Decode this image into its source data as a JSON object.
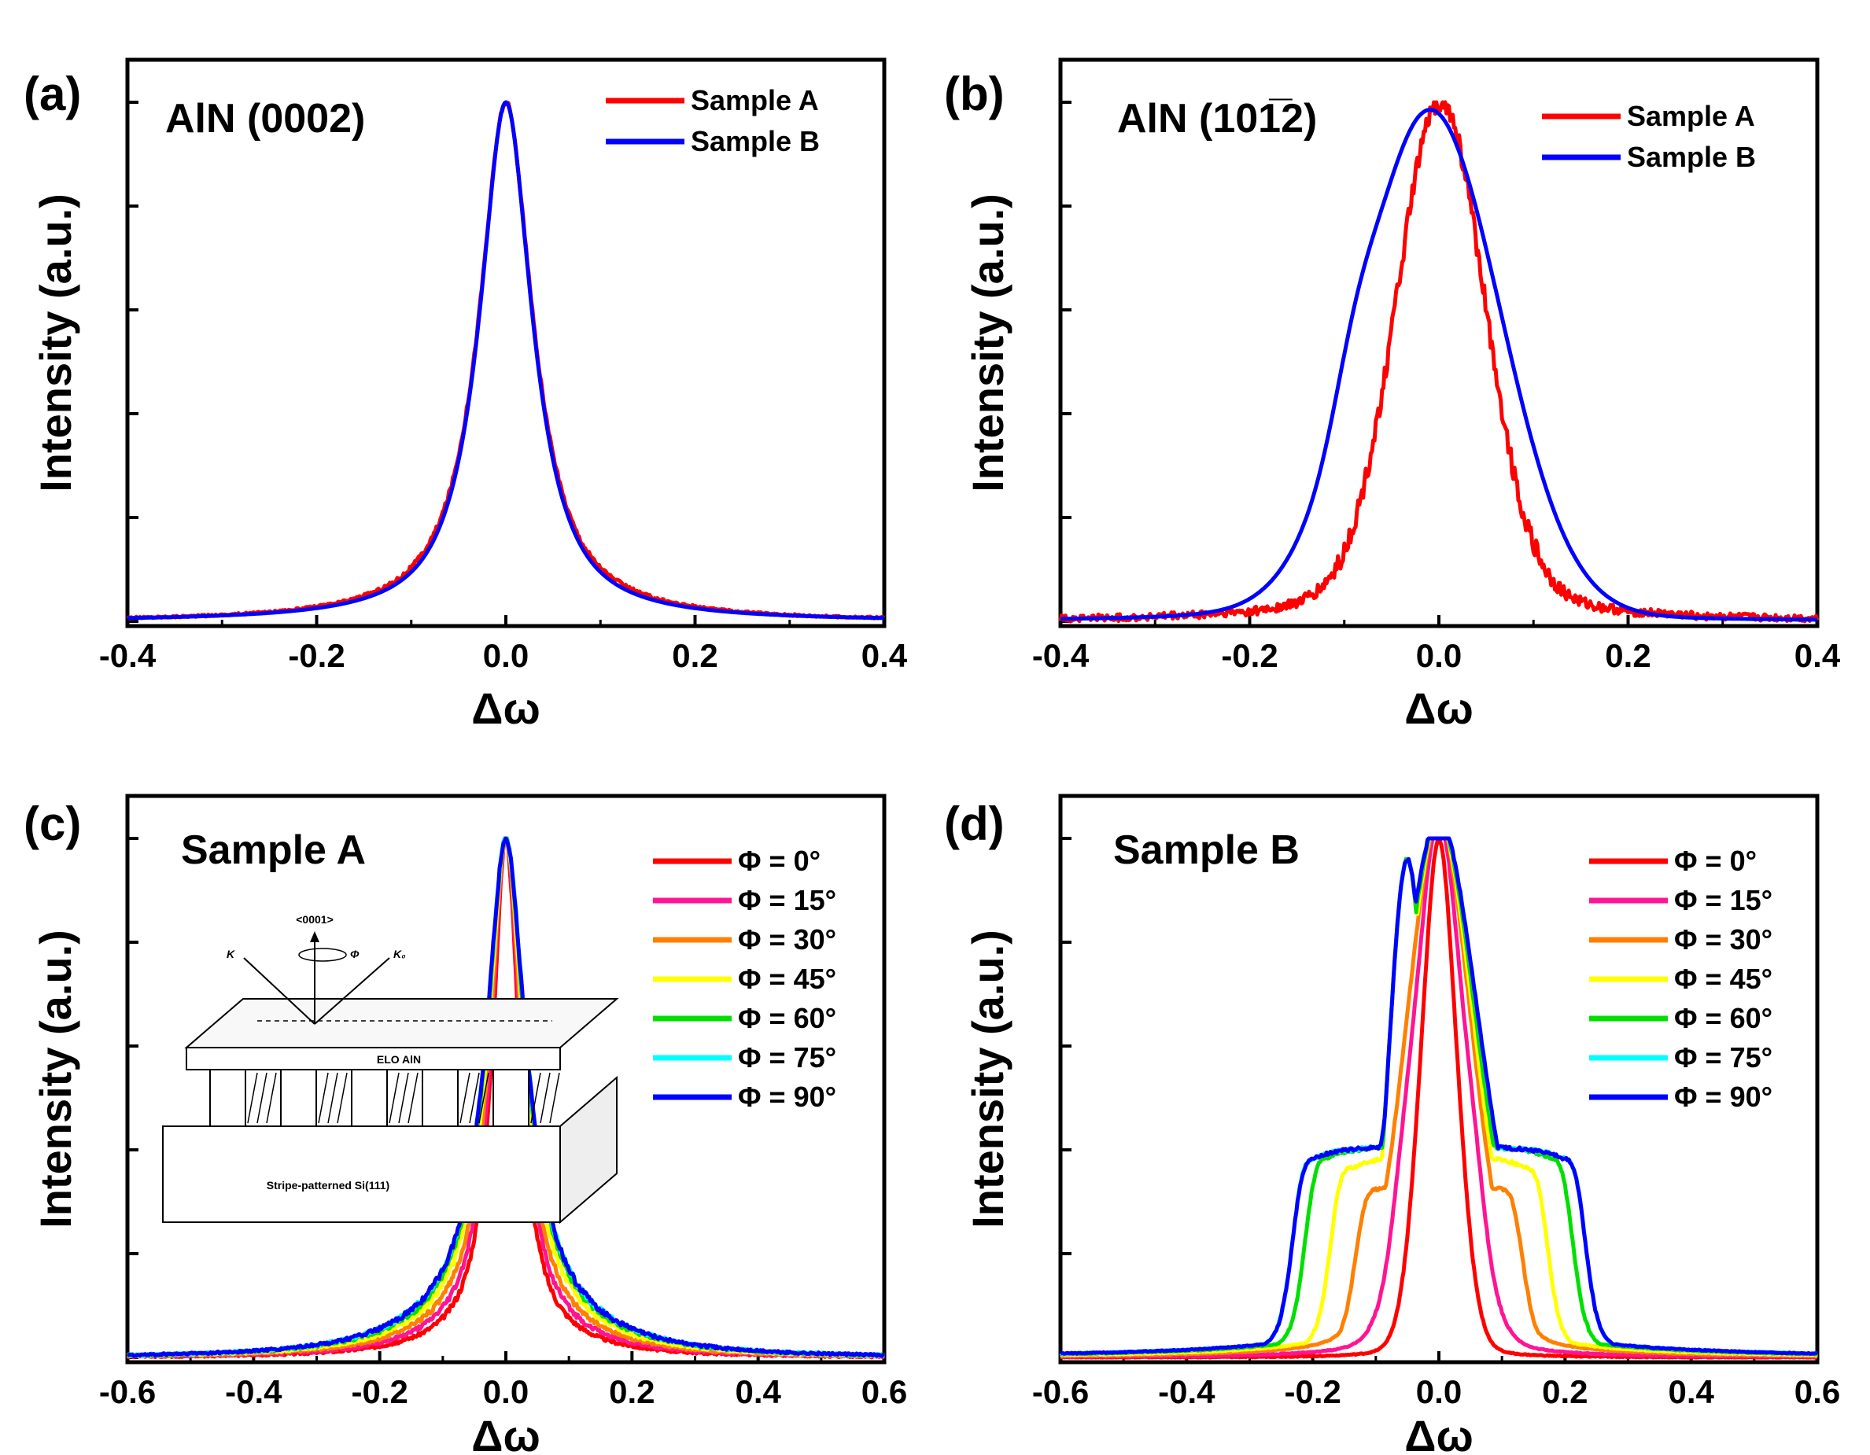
{
  "chart_data": [
    {
      "type": "line",
      "panel_label": "(a)",
      "title": "AlN (0002)",
      "xlabel": "Δω",
      "ylabel": "Intensity (a.u.)",
      "xlim": [
        -0.4,
        0.4
      ],
      "xticks": [
        -0.4,
        -0.2,
        0.0,
        0.2,
        0.4
      ],
      "xtick_labels": [
        "-0.4",
        "-0.2",
        "0.0",
        "0.2",
        "0.4"
      ],
      "ylim": [
        0,
        1
      ],
      "y_tick_labels_shown": false,
      "legend_position": "top-right",
      "series": [
        {
          "name": "Sample A",
          "color": "#ff0000",
          "fwhm": 0.065,
          "tail": 0.045,
          "tailWidth": 0.2,
          "noise": 0.005,
          "x": [
            -0.4,
            -0.3,
            -0.2,
            -0.15,
            -0.1,
            -0.08,
            -0.06,
            -0.04,
            -0.02,
            0.0,
            0.02,
            0.04,
            0.06,
            0.08,
            0.1,
            0.15,
            0.2,
            0.3,
            0.4
          ],
          "y": [
            0.004,
            0.012,
            0.03,
            0.04,
            0.07,
            0.1,
            0.2,
            0.44,
            0.82,
            1.0,
            0.82,
            0.44,
            0.2,
            0.1,
            0.06,
            0.03,
            0.018,
            0.008,
            0.003
          ]
        },
        {
          "name": "Sample B",
          "color": "#0000ff",
          "fwhm": 0.065,
          "tail": 0.02,
          "tailWidth": 0.17,
          "noise": 0.0,
          "x": [
            -0.4,
            -0.3,
            -0.2,
            -0.15,
            -0.1,
            -0.08,
            -0.06,
            -0.04,
            -0.02,
            0.0,
            0.02,
            0.04,
            0.06,
            0.08,
            0.1,
            0.15,
            0.2,
            0.3,
            0.4
          ],
          "y": [
            0.002,
            0.005,
            0.012,
            0.022,
            0.05,
            0.09,
            0.19,
            0.43,
            0.82,
            1.0,
            0.82,
            0.43,
            0.19,
            0.09,
            0.05,
            0.02,
            0.01,
            0.004,
            0.002
          ]
        }
      ]
    },
    {
      "type": "line",
      "panel_label": "(b)",
      "title": "AlN (101̅2)",
      "xlabel": "Δω",
      "ylabel": "Intensity (a.u.)",
      "xlim": [
        -0.4,
        0.4
      ],
      "xticks": [
        -0.4,
        -0.2,
        0.0,
        0.2,
        0.4
      ],
      "xtick_labels": [
        "-0.4",
        "-0.2",
        "0.0",
        "0.2",
        "0.4"
      ],
      "ylim": [
        0,
        1
      ],
      "y_tick_labels_shown": false,
      "legend_position": "top-right",
      "series": [
        {
          "name": "Sample A",
          "color": "#ff0000",
          "fwhm": 0.11,
          "tail": 0.02,
          "tailWidth": 0.25,
          "noise": 0.02,
          "x": [
            -0.4,
            -0.3,
            -0.2,
            -0.15,
            -0.1,
            -0.08,
            -0.06,
            -0.04,
            -0.02,
            0.0,
            0.02,
            0.04,
            0.06,
            0.08,
            0.1,
            0.12,
            0.15,
            0.2,
            0.3,
            0.4
          ],
          "y": [
            0.005,
            0.01,
            0.03,
            0.07,
            0.15,
            0.23,
            0.36,
            0.6,
            0.88,
            1.0,
            0.88,
            0.66,
            0.45,
            0.3,
            0.18,
            0.1,
            0.06,
            0.03,
            0.012,
            0.005
          ]
        },
        {
          "name": "Sample B",
          "color": "#0000ff",
          "fwhm": 0.17,
          "tail": 0.01,
          "tailWidth": 0.2,
          "noise": 0.0,
          "x": [
            -0.4,
            -0.3,
            -0.2,
            -0.15,
            -0.1,
            -0.08,
            -0.06,
            -0.04,
            -0.02,
            0.0,
            0.02,
            0.04,
            0.06,
            0.08,
            0.1,
            0.12,
            0.15,
            0.2,
            0.3,
            0.4
          ],
          "y": [
            0.002,
            0.006,
            0.025,
            0.09,
            0.36,
            0.48,
            0.63,
            0.8,
            0.93,
            1.0,
            0.92,
            0.79,
            0.62,
            0.43,
            0.26,
            0.14,
            0.07,
            0.015,
            0.004,
            0.002
          ]
        }
      ]
    },
    {
      "type": "line",
      "panel_label": "(c)",
      "title": "Sample A",
      "xlabel": "Δω",
      "ylabel": "Intensity (a.u.)",
      "xlim": [
        -0.6,
        0.6
      ],
      "xticks": [
        -0.6,
        -0.4,
        -0.2,
        0.0,
        0.2,
        0.4,
        0.6
      ],
      "xtick_labels": [
        "-0.6",
        "-0.4",
        "-0.2",
        "0.0",
        "0.2",
        "0.4",
        "0.6"
      ],
      "ylim": [
        0,
        1
      ],
      "y_tick_labels_shown": false,
      "legend_position": "top-right",
      "inset": {
        "axis_label": "<0001>",
        "phi_label": "Φ",
        "k_label": "K",
        "k0_label": "K₀",
        "top_layer_label": "ELO AlN",
        "substrate_label": "Stripe-patterned Si(111)"
      },
      "series": [
        {
          "name": "Φ = 0°",
          "color": "#ff0000",
          "fwhm": 0.05,
          "tail": 0.06,
          "tailWidth": 0.22,
          "noise": 0.006,
          "peak": 1.0
        },
        {
          "name": "Φ = 15°",
          "color": "#ff1493",
          "fwhm": 0.055,
          "tail": 0.08,
          "tailWidth": 0.24,
          "noise": 0.006,
          "peak": 1.0
        },
        {
          "name": "Φ = 30°",
          "color": "#ff8000",
          "fwhm": 0.06,
          "tail": 0.1,
          "tailWidth": 0.26,
          "noise": 0.006,
          "peak": 1.0
        },
        {
          "name": "Φ = 45°",
          "color": "#ffff00",
          "fwhm": 0.065,
          "tail": 0.12,
          "tailWidth": 0.28,
          "noise": 0.006,
          "peak": 1.0
        },
        {
          "name": "Φ = 60°",
          "color": "#00e000",
          "fwhm": 0.07,
          "tail": 0.13,
          "tailWidth": 0.29,
          "noise": 0.006,
          "peak": 1.0
        },
        {
          "name": "Φ = 75°",
          "color": "#00ffff",
          "fwhm": 0.072,
          "tail": 0.14,
          "tailWidth": 0.3,
          "noise": 0.006,
          "peak": 1.0
        },
        {
          "name": "Φ = 90°",
          "color": "#0000ff",
          "fwhm": 0.072,
          "tail": 0.14,
          "tailWidth": 0.3,
          "noise": 0.006,
          "peak": 1.0
        }
      ]
    },
    {
      "type": "line",
      "panel_label": "(d)",
      "title": "Sample B",
      "xlabel": "Δω",
      "ylabel": "Intensity (a.u.)",
      "xlim": [
        -0.6,
        0.6
      ],
      "xticks": [
        -0.6,
        -0.4,
        -0.2,
        0.0,
        0.2,
        0.4,
        0.6
      ],
      "xtick_labels": [
        "-0.6",
        "-0.4",
        "-0.2",
        "0.0",
        "0.2",
        "0.4",
        "0.6"
      ],
      "ylim": [
        0,
        1
      ],
      "y_tick_labels_shown": false,
      "legend_position": "top-right",
      "series": [
        {
          "name": "Φ = 0°",
          "color": "#ff0000",
          "center": 0.0,
          "fwhm": 0.07,
          "side_offset": 0.0,
          "side_height": 0.0,
          "side_width": 0.05,
          "base": 0.0
        },
        {
          "name": "Φ = 15°",
          "color": "#ff1493",
          "center": 0.0,
          "fwhm": 0.1,
          "side_offset": 0.07,
          "side_height": 0.22,
          "side_width": 0.05,
          "base": 0.0
        },
        {
          "name": "Φ = 30°",
          "color": "#ff8000",
          "center": 0.0,
          "fwhm": 0.13,
          "side_offset": 0.13,
          "side_height": 0.3,
          "side_width": 0.05,
          "base": 0.0
        },
        {
          "name": "Φ = 45°",
          "color": "#ffff00",
          "center": 0.0,
          "fwhm": 0.14,
          "side_offset": 0.17,
          "side_height": 0.35,
          "side_width": 0.045,
          "base": 0.0
        },
        {
          "name": "Φ = 60°",
          "color": "#00e000",
          "center": 0.0,
          "fwhm": 0.15,
          "side_offset": 0.21,
          "side_height": 0.37,
          "side_width": 0.045,
          "base": 0.0
        },
        {
          "name": "Φ = 75°",
          "color": "#00ffff",
          "center": 0.0,
          "fwhm": 0.16,
          "side_offset": 0.23,
          "side_height": 0.37,
          "side_width": 0.045,
          "base": 0.0
        },
        {
          "name": "Φ = 90°",
          "color": "#0000ff",
          "center": 0.0,
          "fwhm": 0.16,
          "side_offset": 0.23,
          "side_height": 0.37,
          "side_width": 0.045,
          "base": 0.0
        }
      ]
    }
  ]
}
